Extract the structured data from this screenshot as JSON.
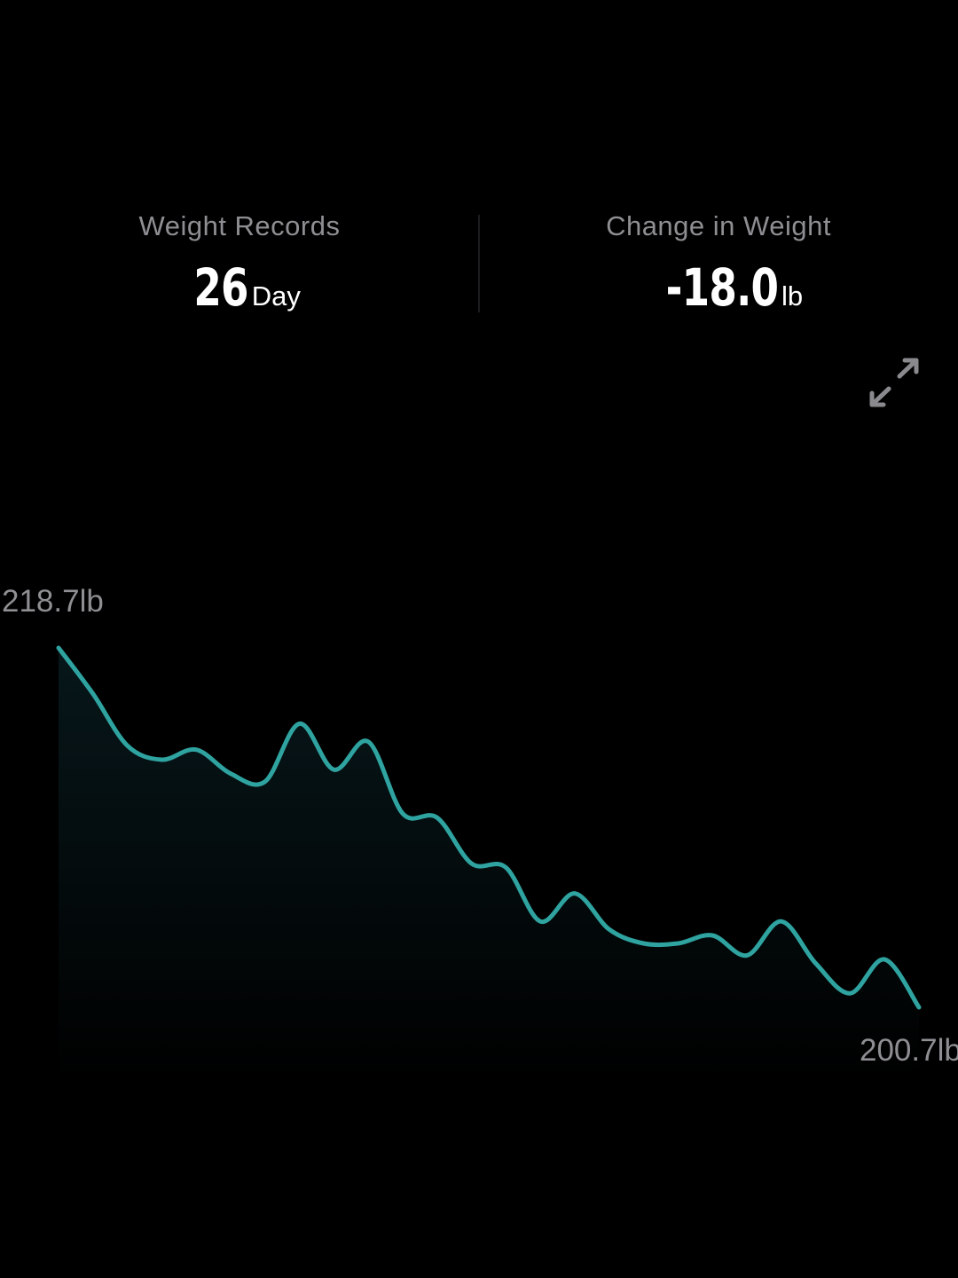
{
  "stats": {
    "records": {
      "label": "Weight Records",
      "value": "26",
      "unit": "Day"
    },
    "change": {
      "label": "Change in Weight",
      "value": "-18.0",
      "unit": "lb"
    }
  },
  "expand_icon": "expand-arrows-icon",
  "colors": {
    "background": "#000000",
    "line": "#2fa3a0",
    "muted_text": "#8e8e93",
    "primary_text": "#ffffff"
  },
  "chart": {
    "max_label": "218.7lb",
    "min_label": "200.7lb"
  },
  "chart_data": {
    "type": "area",
    "x": [
      1,
      2,
      3,
      4,
      5,
      6,
      7,
      8,
      9,
      10,
      11,
      12,
      13,
      14,
      15,
      16,
      17,
      18,
      19,
      20,
      21,
      22,
      23,
      24,
      25,
      26
    ],
    "values": [
      218.7,
      216.4,
      213.8,
      213.1,
      213.6,
      212.4,
      212.0,
      214.9,
      212.6,
      214.0,
      210.4,
      210.2,
      207.9,
      207.7,
      205.0,
      206.4,
      204.6,
      203.9,
      203.9,
      204.3,
      203.3,
      205.0,
      202.9,
      201.4,
      203.1,
      200.7
    ],
    "max": 218.7,
    "min": 200.7,
    "unit": "lb"
  }
}
